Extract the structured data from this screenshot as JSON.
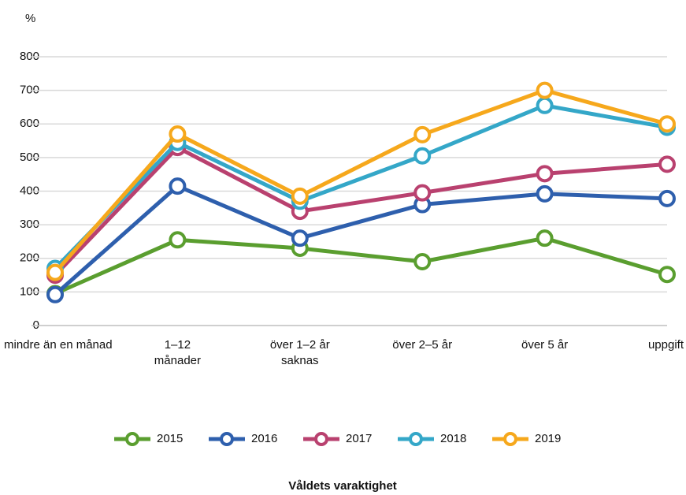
{
  "chart_data": {
    "type": "line",
    "y_label": "%",
    "x_label": "Våldets varaktighet",
    "categories": [
      "mindre än en månad",
      "1–12\nmånader",
      "över 1–2 år\nsaknas",
      "över 2–5 år",
      "över 5 år",
      "uppgift"
    ],
    "series": [
      {
        "name": "2015",
        "color": "#5a9e2f",
        "values": [
          95,
          255,
          230,
          190,
          260,
          152
        ]
      },
      {
        "name": "2016",
        "color": "#2e5fad",
        "values": [
          92,
          415,
          260,
          360,
          392,
          378
        ]
      },
      {
        "name": "2017",
        "color": "#b9416f",
        "values": [
          150,
          530,
          340,
          395,
          452,
          480
        ]
      },
      {
        "name": "2018",
        "color": "#34a7c8",
        "values": [
          170,
          545,
          370,
          505,
          655,
          590
        ]
      },
      {
        "name": "2019",
        "color": "#f6a81c",
        "values": [
          158,
          570,
          385,
          568,
          700,
          600
        ]
      }
    ],
    "ylim": [
      0,
      800
    ],
    "yticks": [
      0,
      100,
      200,
      300,
      400,
      500,
      600,
      700,
      800
    ],
    "grid": true,
    "legend": "bottom"
  }
}
